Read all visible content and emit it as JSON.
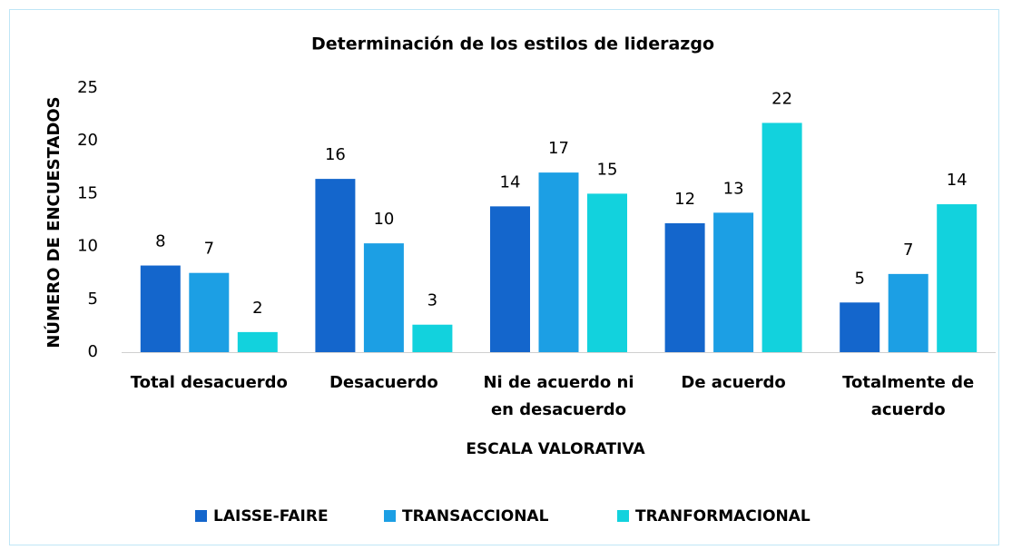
{
  "chart_data": {
    "type": "bar",
    "title": "Determinación de los estilos de liderazgo",
    "x_label": "ESCALA VALORATIVA",
    "y_label": "NÚMERO DE ENCUESTADOS",
    "categories": [
      "Total desacuerdo",
      "Desacuerdo",
      "Ni de acuerdo ni en desacuerdo",
      "De acuerdo",
      "Totalmente de acuerdo"
    ],
    "series": [
      {
        "name": "LAISSE-FAIRE",
        "color": "#1466cc",
        "values": [
          8.2,
          16.4,
          13.8,
          12.2,
          4.7
        ],
        "value_labels": [
          "8",
          "16",
          "14",
          "12",
          "5"
        ]
      },
      {
        "name": "TRANSACCIONAL",
        "color": "#1c9fe4",
        "values": [
          7.5,
          10.3,
          17,
          13.2,
          7.4
        ],
        "value_labels": [
          "7",
          "10",
          "17",
          "13",
          "7"
        ]
      },
      {
        "name": "TRANFORMACIONAL",
        "color": "#12d2dd",
        "values": [
          1.9,
          2.6,
          15,
          21.7,
          14
        ],
        "value_labels": [
          "2",
          "3",
          "15",
          "22",
          "14"
        ]
      }
    ],
    "ylim": [
      0,
      25
    ],
    "yticks": [
      0,
      5,
      10,
      15,
      20,
      25
    ],
    "grid": false,
    "legend": "bottom"
  }
}
